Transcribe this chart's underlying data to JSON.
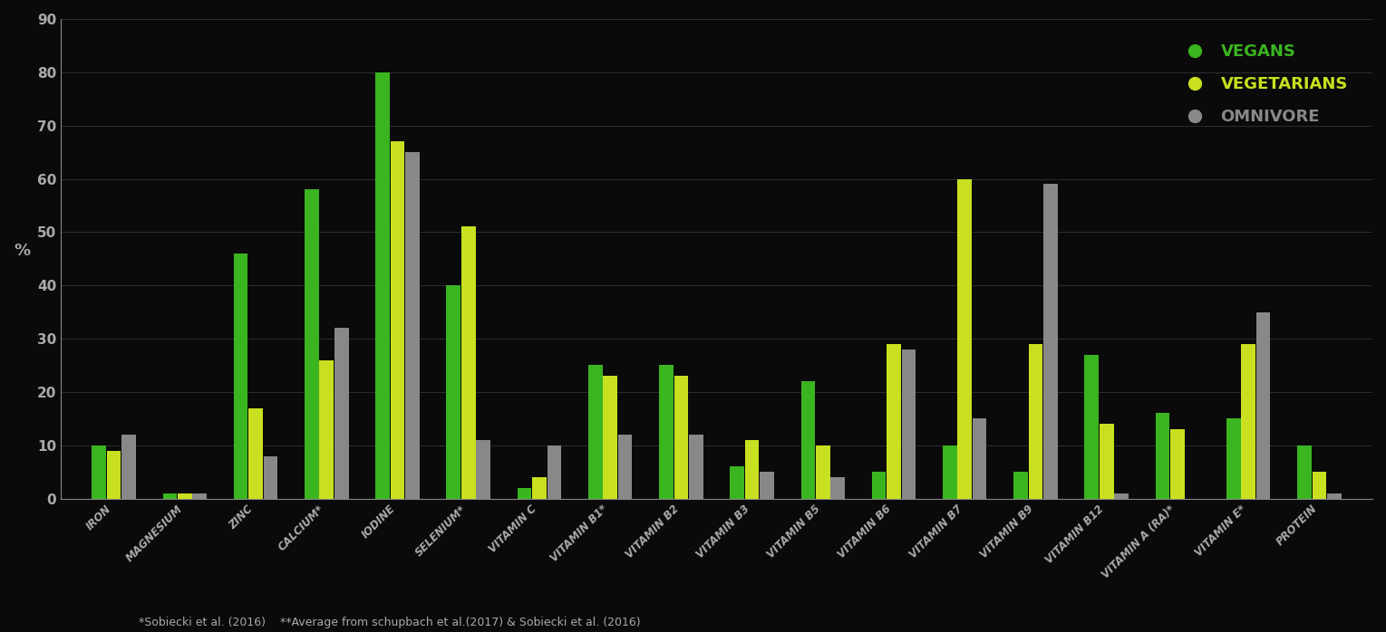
{
  "categories": [
    "IRON",
    "MAGNESIUM",
    "ZINC",
    "CALCIUM*",
    "IODINE",
    "SELENIUM*",
    "VITAMIN C",
    "VITAMIN B1*",
    "VITAMIN B2",
    "VITAMIN B3",
    "VITAMIN B5",
    "VITAMIN B6",
    "VITAMIN B7",
    "VITAMIN B9",
    "VITAMIN B12",
    "VITAMIN A (RA)*",
    "VITAMIN E*",
    "PROTEIN"
  ],
  "vegans": [
    10,
    1,
    46,
    58,
    80,
    40,
    2,
    25,
    25,
    6,
    22,
    5,
    10,
    5,
    27,
    16,
    15,
    10
  ],
  "vegetarians": [
    9,
    1,
    17,
    26,
    67,
    51,
    4,
    23,
    23,
    11,
    10,
    29,
    60,
    29,
    14,
    13,
    29,
    5
  ],
  "omnivore": [
    12,
    1,
    8,
    32,
    65,
    11,
    10,
    12,
    12,
    5,
    4,
    28,
    15,
    59,
    1,
    0,
    35,
    1
  ],
  "vegan_color": "#3ab520",
  "vegetarian_color": "#c8e020",
  "omnivore_color": "#888888",
  "background_color": "#0a0a0a",
  "axis_color": "#888888",
  "text_color": "#aaaaaa",
  "grid_color": "#333333",
  "ylabel": "%",
  "ylim": [
    0,
    90
  ],
  "yticks": [
    0,
    10,
    20,
    30,
    40,
    50,
    60,
    70,
    80,
    90
  ],
  "bar_width": 0.2,
  "legend_labels": [
    "VEGANS",
    "VEGETARIANS",
    "OMNIVORE"
  ],
  "footnote": "*Sobiecki et al. (2016)    **Average from schupbach et al.(2017) & Sobiecki et al. (2016)"
}
